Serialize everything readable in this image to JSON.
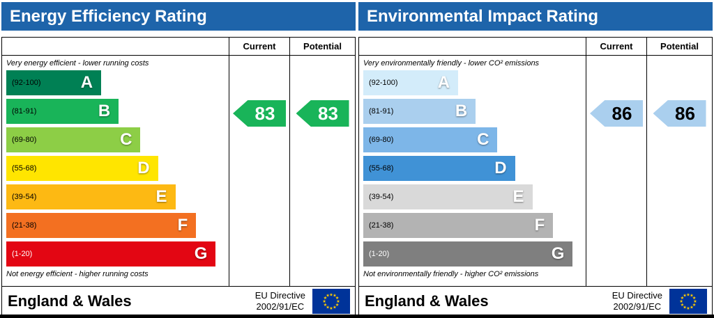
{
  "page": {
    "bottom_bar_color": "#000000",
    "background": "#ffffff"
  },
  "eu_flag": {
    "bg": "#003399",
    "star_color": "#ffcc00"
  },
  "panels": [
    {
      "title": "Energy Efficiency Rating",
      "title_bg": "#1e64aa",
      "col_current": "Current",
      "col_potential": "Potential",
      "top_caption": "Very energy efficient - lower running costs",
      "bottom_caption": "Not energy efficient - higher running costs",
      "bands": [
        {
          "letter": "A",
          "range": "(92-100)",
          "color": "#008054",
          "width_pct": 43.5,
          "range_color": "#000000"
        },
        {
          "letter": "B",
          "range": "(81-91)",
          "color": "#19b459",
          "width_pct": 51.5,
          "range_color": "#000000"
        },
        {
          "letter": "C",
          "range": "(69-80)",
          "color": "#8dce46",
          "width_pct": 61.5,
          "range_color": "#000000"
        },
        {
          "letter": "D",
          "range": "(55-68)",
          "color": "#ffe500",
          "width_pct": 69.5,
          "range_color": "#000000"
        },
        {
          "letter": "E",
          "range": "(39-54)",
          "color": "#fdb913",
          "width_pct": 77.5,
          "range_color": "#000000"
        },
        {
          "letter": "F",
          "range": "(21-38)",
          "color": "#f37021",
          "width_pct": 87,
          "range_color": "#000000"
        },
        {
          "letter": "G",
          "range": "(1-20)",
          "color": "#e30613",
          "width_pct": 96,
          "range_color": "#ffffff"
        }
      ],
      "current": {
        "value": "83",
        "arrow_color": "#19b459",
        "text_color": "#ffffff"
      },
      "potential": {
        "value": "83",
        "arrow_color": "#19b459",
        "text_color": "#ffffff"
      },
      "footer": {
        "region": "England & Wales",
        "directive_line1": "EU Directive",
        "directive_line2": "2002/91/EC"
      }
    },
    {
      "title": "Environmental Impact Rating",
      "title_bg": "#1e64aa",
      "col_current": "Current",
      "col_potential": "Potential",
      "top_caption": "Very environmentally friendly - lower CO² emissions",
      "bottom_caption": "Not environmentally friendly - higher CO² emissions",
      "bands": [
        {
          "letter": "A",
          "range": "(92-100)",
          "color": "#d3ecfa",
          "width_pct": 43.5,
          "range_color": "#000000"
        },
        {
          "letter": "B",
          "range": "(81-91)",
          "color": "#aacfee",
          "width_pct": 51.5,
          "range_color": "#000000"
        },
        {
          "letter": "C",
          "range": "(69-80)",
          "color": "#7db6e8",
          "width_pct": 61.5,
          "range_color": "#000000"
        },
        {
          "letter": "D",
          "range": "(55-68)",
          "color": "#4092d6",
          "width_pct": 69.5,
          "range_color": "#000000"
        },
        {
          "letter": "E",
          "range": "(39-54)",
          "color": "#d9d9d9",
          "width_pct": 77.5,
          "range_color": "#000000"
        },
        {
          "letter": "F",
          "range": "(21-38)",
          "color": "#b3b3b3",
          "width_pct": 87,
          "range_color": "#000000"
        },
        {
          "letter": "G",
          "range": "(1-20)",
          "color": "#7f7f7f",
          "width_pct": 96,
          "range_color": "#ffffff"
        }
      ],
      "current": {
        "value": "86",
        "arrow_color": "#aacfee",
        "text_color": "#000000"
      },
      "potential": {
        "value": "86",
        "arrow_color": "#aacfee",
        "text_color": "#000000"
      },
      "footer": {
        "region": "England & Wales",
        "directive_line1": "EU Directive",
        "directive_line2": "2002/91/EC"
      }
    }
  ],
  "chart_data": [
    {
      "type": "bar",
      "title": "Energy Efficiency Rating",
      "categories": [
        "A",
        "B",
        "C",
        "D",
        "E",
        "F",
        "G"
      ],
      "band_ranges": [
        "92-100",
        "81-91",
        "69-80",
        "55-68",
        "39-54",
        "21-38",
        "1-20"
      ],
      "current": 83,
      "potential": 83,
      "column_headers": [
        "Current",
        "Potential"
      ],
      "annotations": [
        "Very energy efficient - lower running costs",
        "Not energy efficient - higher running costs"
      ],
      "footer": "England & Wales, EU Directive 2002/91/EC"
    },
    {
      "type": "bar",
      "title": "Environmental Impact Rating",
      "categories": [
        "A",
        "B",
        "C",
        "D",
        "E",
        "F",
        "G"
      ],
      "band_ranges": [
        "92-100",
        "81-91",
        "69-80",
        "55-68",
        "39-54",
        "21-38",
        "1-20"
      ],
      "current": 86,
      "potential": 86,
      "column_headers": [
        "Current",
        "Potential"
      ],
      "annotations": [
        "Very environmentally friendly - lower CO² emissions",
        "Not environmentally friendly - higher CO² emissions"
      ],
      "footer": "England & Wales, EU Directive 2002/91/EC"
    }
  ]
}
